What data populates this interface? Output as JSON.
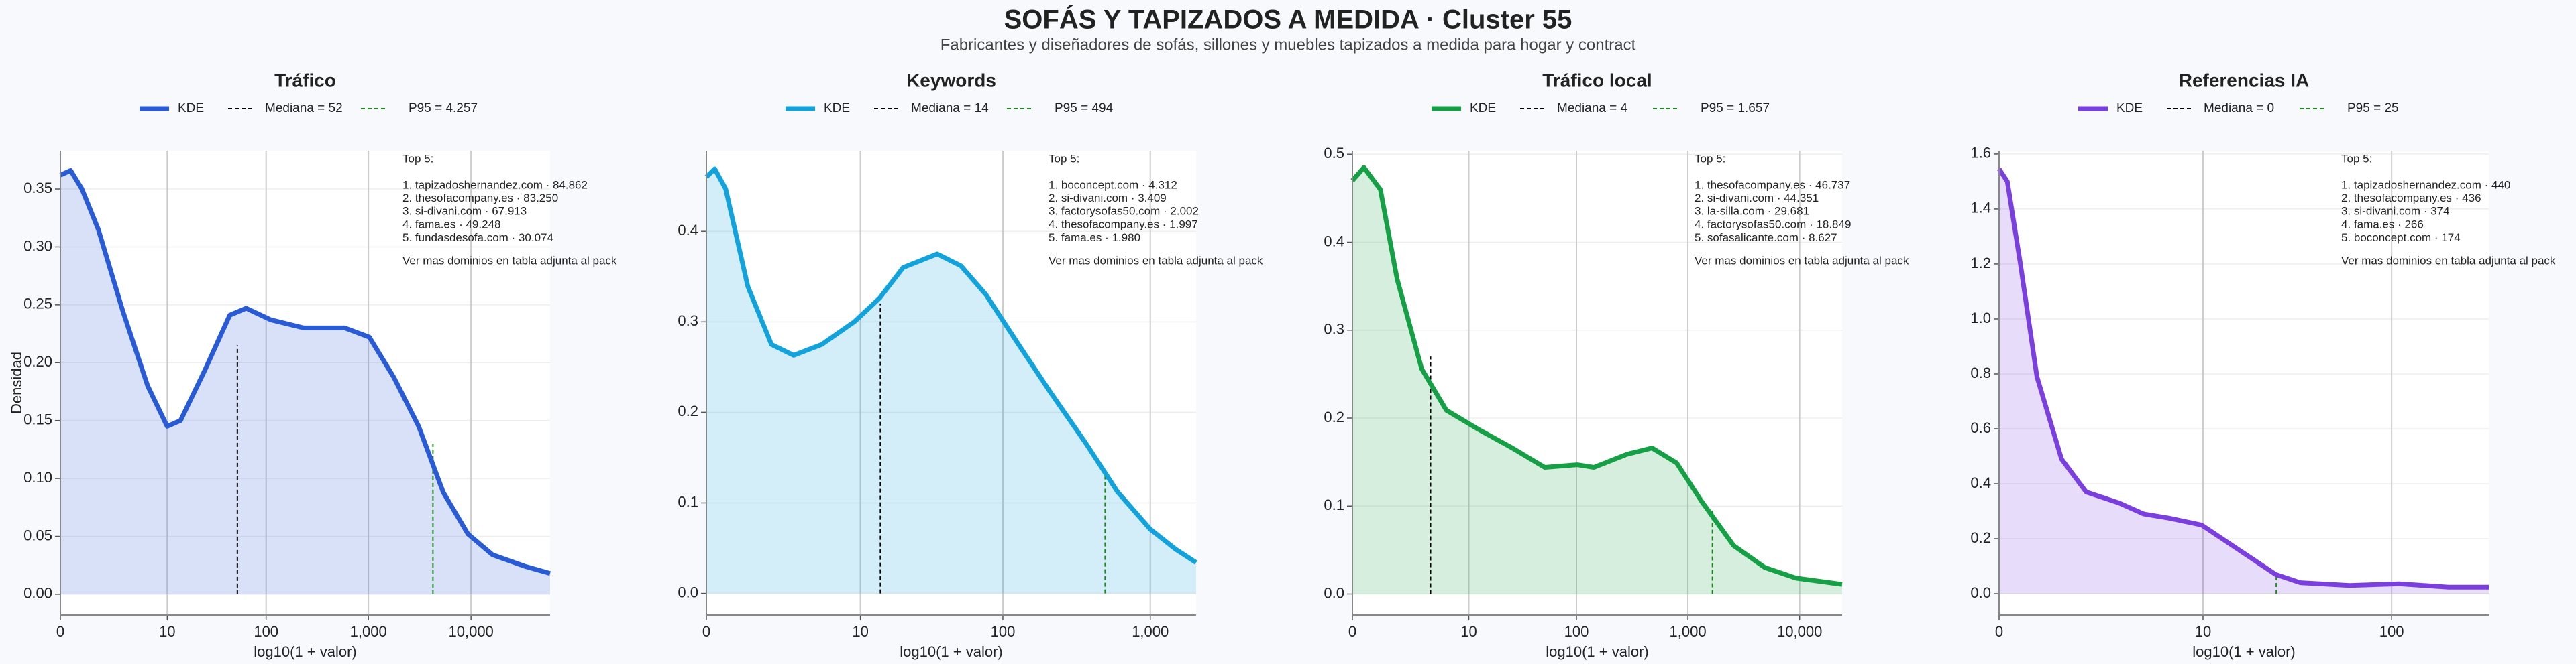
{
  "title": "SOFÁS Y TAPIZADOS A MEDIDA · Cluster 55",
  "subtitle": "Fabricantes y diseñadores de sofás, sillones y muebles tapizados a medida para hogar y contract",
  "chart_data": [
    {
      "type": "line",
      "title": "Tráfico",
      "xlabel": "log10(1 + valor)",
      "ylabel": "Densidad",
      "grid": true,
      "x": [
        0,
        0.1,
        0.21,
        0.37,
        0.61,
        0.85,
        1.04,
        1.17,
        1.41,
        1.65,
        1.81,
        2.05,
        2.37,
        2.77,
        3.01,
        3.25,
        3.49,
        3.73,
        3.97,
        4.21,
        4.53,
        4.77
      ],
      "series": [
        {
          "name": "KDE",
          "color": "#2a5bd7",
          "values": [
            0.362,
            0.366,
            0.35,
            0.315,
            0.244,
            0.18,
            0.145,
            0.15,
            0.194,
            0.241,
            0.247,
            0.237,
            0.23,
            0.23,
            0.222,
            0.187,
            0.145,
            0.088,
            0.052,
            0.034,
            0.024,
            0.018
          ]
        }
      ],
      "markers": [
        {
          "name": "Mediana = 52",
          "x": 1.724,
          "y": 0.215,
          "color": "#000000"
        },
        {
          "name": "P95 = 4.257",
          "x": 3.629,
          "y": 0.13,
          "color": "#1a8a1a"
        }
      ],
      "annotation": [
        "Top 5:",
        "1. tapizadoshernandez.com · 84.862",
        "2. thesofacompany.es · 83.250",
        "3. si-divani.com · 67.913",
        "4. fama.es · 49.248",
        "5. fundasdesofa.com · 30.074",
        "Ver mas dominios en tabla adjunta al pack"
      ],
      "xlim": [
        0,
        4.77
      ],
      "ylim": [
        -0.018,
        0.383
      ],
      "xticks": [
        0,
        {
          "value": 1.041,
          "label": "10"
        },
        {
          "value": 2.004,
          "label": "100"
        },
        {
          "value": 3.0004,
          "label": "1,000"
        },
        {
          "value": 4,
          "label": "10,000"
        }
      ],
      "yticks": [
        {
          "value": 0,
          "label": "0.00"
        },
        0.05,
        {
          "value": 0.1,
          "label": "0.10"
        },
        0.15,
        {
          "value": 0.2,
          "label": "0.20"
        },
        0.25,
        {
          "value": 0.3,
          "label": "0.30"
        },
        0.35
      ]
    },
    {
      "type": "line",
      "title": "Keywords",
      "xlabel": "log10(1 + valor)",
      "grid": true,
      "x": [
        0,
        0.056,
        0.13,
        0.28,
        0.44,
        0.59,
        0.78,
        1.0,
        1.17,
        1.33,
        1.56,
        1.72,
        1.89,
        2.11,
        2.33,
        2.56,
        2.78,
        3.0,
        3.17,
        3.31
      ],
      "series": [
        {
          "name": "KDE",
          "color": "#12a3dd",
          "values": [
            0.46,
            0.469,
            0.447,
            0.339,
            0.275,
            0.263,
            0.275,
            0.3,
            0.326,
            0.36,
            0.375,
            0.362,
            0.33,
            0.275,
            0.221,
            0.167,
            0.112,
            0.071,
            0.049,
            0.034
          ]
        }
      ],
      "markers": [
        {
          "name": "Mediana = 14",
          "x": 1.176,
          "y": 0.32,
          "color": "#000000"
        },
        {
          "name": "P95 = 494",
          "x": 2.695,
          "y": 0.13,
          "color": "#1a8a1a"
        }
      ],
      "annotation": [
        "Top 5:",
        "1. boconcept.com · 4.312",
        "2. si-divani.com · 3.409",
        "3. factorysofas50.com · 2.002",
        "4. thesofacompany.es · 1.997",
        "5. fama.es · 1.980",
        "Ver mas dominios en tabla adjunta al pack"
      ],
      "xlim": [
        0,
        3.31
      ],
      "ylim": [
        -0.024,
        0.489
      ],
      "xticks": [
        0,
        {
          "value": 1.041,
          "label": "10"
        },
        {
          "value": 2.004,
          "label": "100"
        },
        {
          "value": 3.0004,
          "label": "1,000"
        }
      ],
      "yticks": [
        {
          "value": 0,
          "label": "0.0"
        },
        0.1,
        0.2,
        0.3,
        0.4
      ]
    },
    {
      "type": "line",
      "title": "Tráfico local",
      "xlabel": "log10(1 + valor)",
      "grid": true,
      "x": [
        0,
        0.103,
        0.25,
        0.4,
        0.62,
        0.84,
        1.13,
        1.43,
        1.72,
        2.01,
        2.16,
        2.46,
        2.68,
        2.9,
        3.12,
        3.41,
        3.69,
        3.97,
        4.38
      ],
      "series": [
        {
          "name": "KDE",
          "color": "#16a045",
          "values": [
            0.47,
            0.485,
            0.46,
            0.358,
            0.256,
            0.209,
            0.187,
            0.166,
            0.144,
            0.147,
            0.144,
            0.159,
            0.166,
            0.149,
            0.106,
            0.055,
            0.03,
            0.018,
            0.011
          ]
        }
      ],
      "markers": [
        {
          "name": "Mediana = 4",
          "x": 0.699,
          "y": 0.27,
          "color": "#000000"
        },
        {
          "name": "P95 = 1.657",
          "x": 3.22,
          "y": 0.095,
          "color": "#1a8a1a"
        }
      ],
      "annotation": [
        "Top 5:",
        "1. thesofacompany.es · 46.737",
        "2. si-divani.com · 44.351",
        "3. la-silla.com · 29.681",
        "4. factorysofas50.com · 18.849",
        "5. sofasalicante.com · 8.627",
        "Ver mas dominios en tabla adjunta al pack"
      ],
      "xlim": [
        0,
        4.38
      ],
      "ylim": [
        -0.024,
        0.504
      ],
      "xticks": [
        0,
        {
          "value": 1.041,
          "label": "10"
        },
        {
          "value": 2.004,
          "label": "100"
        },
        {
          "value": 3.0004,
          "label": "1,000"
        },
        {
          "value": 4,
          "label": "10,000"
        }
      ],
      "yticks": [
        {
          "value": 0,
          "label": "0.0"
        },
        0.1,
        0.2,
        0.3,
        0.4,
        0.5
      ]
    },
    {
      "type": "line",
      "title": "Referencias IA",
      "xlabel": "log10(1 + valor)",
      "grid": true,
      "x": [
        0,
        0.042,
        0.109,
        0.193,
        0.319,
        0.445,
        0.613,
        0.739,
        0.866,
        1.034,
        1.16,
        1.286,
        1.412,
        1.538,
        1.79,
        2.042,
        2.294,
        2.5
      ],
      "series": [
        {
          "name": "KDE",
          "color": "#7b3fe0",
          "values": [
            1.546,
            1.5,
            1.2,
            0.79,
            0.49,
            0.37,
            0.33,
            0.29,
            0.275,
            0.25,
            0.19,
            0.13,
            0.07,
            0.04,
            0.03,
            0.036,
            0.024,
            0.024
          ]
        }
      ],
      "markers": [
        {
          "name": "Mediana = 0",
          "x": 0,
          "y": 1.546,
          "color": "#000000"
        },
        {
          "name": "P95 = 25",
          "x": 1.415,
          "y": 0.075,
          "color": "#1a8a1a"
        }
      ],
      "annotation": [
        "Top 5:",
        "1. tapizadoshernandez.com · 440",
        "2. thesofacompany.es · 436",
        "3. si-divani.com · 374",
        "4. fama.es · 266",
        "5. boconcept.com · 174",
        "Ver mas dominios en tabla adjunta al pack"
      ],
      "xlim": [
        0,
        2.5
      ],
      "ylim": [
        -0.078,
        1.612
      ],
      "xticks": [
        0,
        {
          "value": 1.041,
          "label": "10"
        },
        {
          "value": 2.004,
          "label": "100"
        }
      ],
      "yticks": [
        {
          "value": 0,
          "label": "0.0"
        },
        0.2,
        0.4,
        0.6,
        0.8,
        {
          "value": 1,
          "label": "1.0"
        },
        1.2,
        1.4,
        1.6
      ]
    }
  ]
}
